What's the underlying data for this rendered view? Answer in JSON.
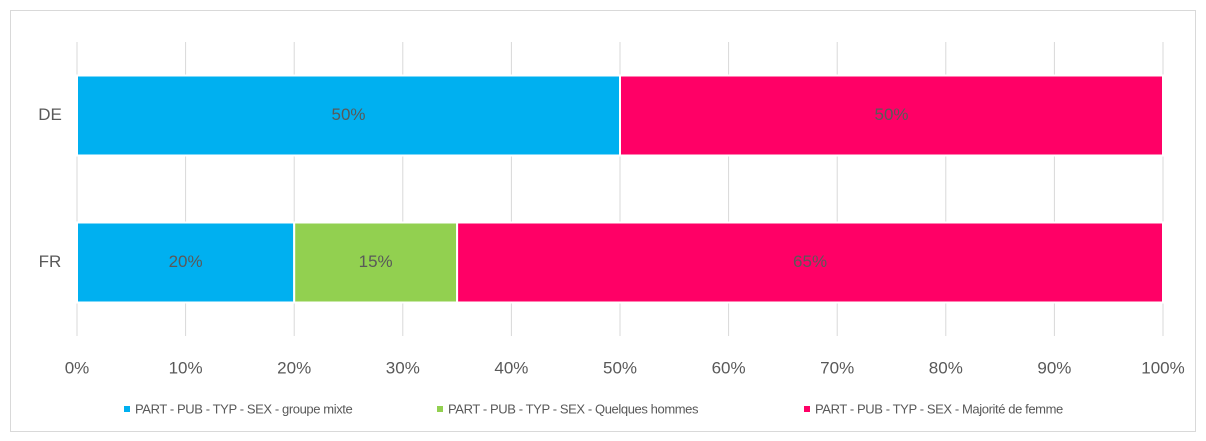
{
  "chart_data": {
    "type": "stacked_barh",
    "categories": [
      "DE",
      "FR"
    ],
    "series": [
      {
        "name": "PART - PUB - TYP - SEX - groupe mixte",
        "color": "#00b0f0",
        "values": [
          50,
          20
        ],
        "value_labels": [
          "50%",
          "20%"
        ]
      },
      {
        "name": "PART - PUB - TYP - SEX - Quelques hommes",
        "color": "#92d050",
        "values": [
          null,
          15
        ],
        "value_labels": [
          null,
          "15%"
        ]
      },
      {
        "name": "PART - PUB - TYP - SEX - Majorité de femme",
        "color": "#ff0066",
        "values": [
          50,
          65
        ],
        "value_labels": [
          "50%",
          "65%"
        ]
      }
    ],
    "xlim": [
      0,
      100
    ],
    "xticks": [
      {
        "value": 0,
        "label": "0%"
      },
      {
        "value": 10,
        "label": "10%"
      },
      {
        "value": 20,
        "label": "20%"
      },
      {
        "value": 30,
        "label": "30%"
      },
      {
        "value": 40,
        "label": "40%"
      },
      {
        "value": 50,
        "label": "50%"
      },
      {
        "value": 60,
        "label": "60%"
      },
      {
        "value": 70,
        "label": "70%"
      },
      {
        "value": 80,
        "label": "80%"
      },
      {
        "value": 90,
        "label": "90%"
      },
      {
        "value": 100,
        "label": "100%"
      }
    ],
    "grid": true,
    "legend": "bottom"
  }
}
